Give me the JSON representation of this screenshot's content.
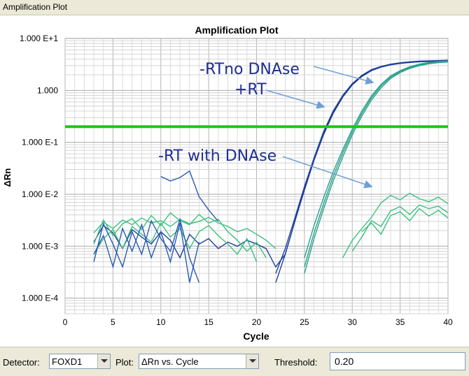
{
  "window": {
    "title": "Amplification Plot"
  },
  "chart_data": {
    "type": "line",
    "title": "Amplification Plot",
    "xlabel": "Cycle",
    "ylabel": "ΔRn",
    "xlim": [
      0,
      40
    ],
    "ylim": [
      5e-05,
      10
    ],
    "yscale": "log",
    "xticks": [
      0,
      5,
      10,
      15,
      20,
      25,
      30,
      35,
      40
    ],
    "xtick_labels": [
      "0",
      "5",
      "10",
      "15",
      "20",
      "25",
      "30",
      "35",
      "40"
    ],
    "yticks": [
      10,
      1,
      0.1,
      0.01,
      0.001,
      0.0001
    ],
    "ytick_labels": [
      "1.000 E+1",
      "1.000",
      "1.000 E-1",
      "1.000 E-2",
      "1.000 E-3",
      "1.000 E-4"
    ],
    "grid": true,
    "threshold": 0.2,
    "threshold_color": "#22c41a",
    "colors": {
      "plus_rt": "#1f3f9a",
      "minus_rt_no_dnase": "#2aa18a",
      "minus_rt_with_dnase": "#3cc080",
      "noise_dark": "#2a5ab0"
    },
    "annotations": [
      {
        "text": "-RTno DNAse",
        "target": "minus_rt_no_dnase"
      },
      {
        "text": "+RT",
        "target": "plus_rt"
      },
      {
        "text": "-RT with DNAse",
        "target": "minus_rt_with_dnase"
      }
    ],
    "series": [
      {
        "group": "plus_rt",
        "x": [
          3,
          4,
          5,
          6,
          7,
          8,
          9,
          10,
          11,
          12,
          13,
          14,
          15,
          16,
          17,
          18,
          19,
          20,
          21,
          22,
          23,
          24,
          25,
          26,
          27,
          28,
          29,
          30,
          31,
          32,
          33,
          34,
          35,
          36,
          37,
          38,
          39,
          40
        ],
        "y": [
          0.0012,
          0.0025,
          0.0018,
          0.0009,
          0.0021,
          0.0015,
          0.0011,
          0.0019,
          0.0013,
          0.0006,
          0.0017,
          0.0011,
          0.0014,
          0.0009,
          0.0012,
          0.001,
          0.0013,
          0.0011,
          0.0009,
          0.0004,
          0.0007,
          0.003,
          0.013,
          0.048,
          0.15,
          0.38,
          0.78,
          1.35,
          1.95,
          2.5,
          2.9,
          3.2,
          3.4,
          3.55,
          3.65,
          3.7,
          3.75,
          3.8
        ]
      },
      {
        "group": "plus_rt",
        "x": [
          22,
          23,
          24,
          25,
          26,
          27,
          28,
          29,
          30,
          31,
          32,
          33,
          34,
          35,
          36,
          37,
          38,
          39,
          40
        ],
        "y": [
          0.0003,
          0.0009,
          0.0035,
          0.014,
          0.05,
          0.16,
          0.4,
          0.8,
          1.35,
          1.9,
          2.45,
          2.85,
          3.15,
          3.35,
          3.5,
          3.6,
          3.65,
          3.7,
          3.72
        ]
      },
      {
        "group": "plus_rt",
        "x": [
          22,
          23,
          24,
          25,
          26,
          27,
          28,
          29,
          30,
          31,
          32,
          33,
          34,
          35,
          36,
          37,
          38,
          39,
          40
        ],
        "y": [
          0.0002,
          0.0007,
          0.003,
          0.012,
          0.045,
          0.14,
          0.36,
          0.74,
          1.28,
          1.85,
          2.4,
          2.8,
          3.1,
          3.3,
          3.45,
          3.55,
          3.6,
          3.65,
          3.68
        ]
      },
      {
        "group": "minus_rt_no_dnase",
        "x": [
          25,
          26,
          27,
          28,
          29,
          30,
          31,
          32,
          33,
          34,
          35,
          36,
          37,
          38,
          39,
          40
        ],
        "y": [
          0.0006,
          0.0025,
          0.0085,
          0.027,
          0.072,
          0.18,
          0.4,
          0.78,
          1.3,
          1.9,
          2.4,
          2.85,
          3.2,
          3.45,
          3.6,
          3.7
        ]
      },
      {
        "group": "minus_rt_no_dnase",
        "x": [
          25,
          26,
          27,
          28,
          29,
          30,
          31,
          32,
          33,
          34,
          35,
          36,
          37,
          38,
          39,
          40
        ],
        "y": [
          0.0004,
          0.0018,
          0.0065,
          0.022,
          0.062,
          0.16,
          0.36,
          0.72,
          1.22,
          1.8,
          2.3,
          2.75,
          3.1,
          3.35,
          3.5,
          3.6
        ]
      },
      {
        "group": "minus_rt_no_dnase",
        "x": [
          25,
          26,
          27,
          28,
          29,
          30,
          31,
          32,
          33,
          34,
          35,
          36,
          37,
          38,
          39,
          40
        ],
        "y": [
          0.0003,
          0.0014,
          0.0052,
          0.018,
          0.052,
          0.14,
          0.32,
          0.65,
          1.12,
          1.7,
          2.2,
          2.65,
          3.0,
          3.25,
          3.42,
          3.52
        ]
      },
      {
        "group": "minus_rt_with_dnase",
        "x": [
          3,
          4,
          5,
          6,
          7,
          8,
          9,
          10,
          11,
          12,
          13,
          14,
          15,
          16,
          17,
          18,
          19,
          20,
          21,
          22
        ],
        "y": [
          0.0018,
          0.0029,
          0.0022,
          0.0032,
          0.0026,
          0.0035,
          0.0028,
          0.0031,
          0.0024,
          0.0033,
          0.0027,
          0.003,
          0.0036,
          0.0028,
          0.0024,
          0.0019,
          0.0022,
          0.0017,
          0.0013,
          0.0009
        ]
      },
      {
        "group": "minus_rt_with_dnase",
        "x": [
          3,
          4,
          5,
          6,
          7,
          8,
          9,
          10,
          11,
          12,
          13,
          14,
          15,
          16,
          17,
          18,
          19,
          20,
          21
        ],
        "y": [
          0.0011,
          0.0032,
          0.0016,
          0.0027,
          0.0034,
          0.0021,
          0.0039,
          0.0025,
          0.0044,
          0.0031,
          0.0026,
          0.0041,
          0.0028,
          0.0033,
          0.0019,
          0.0013,
          0.0008,
          0.0012,
          0.0006
        ]
      },
      {
        "group": "minus_rt_with_dnase",
        "x": [
          3,
          4,
          5,
          6,
          7,
          8,
          9,
          10,
          11,
          12,
          13,
          14,
          15,
          16,
          17,
          18,
          19,
          20
        ],
        "y": [
          0.0007,
          0.0014,
          0.0021,
          0.0009,
          0.0024,
          0.0017,
          0.0012,
          0.0028,
          0.0015,
          0.0022,
          0.0009,
          0.0019,
          0.0025,
          0.0016,
          0.0011,
          0.0007,
          0.0014,
          0.0005
        ]
      },
      {
        "group": "minus_rt_with_dnase",
        "x": [
          29,
          30,
          31,
          32,
          33,
          34,
          35,
          36,
          37,
          38,
          39,
          40
        ],
        "y": [
          0.0006,
          0.0013,
          0.0022,
          0.0036,
          0.0068,
          0.0095,
          0.0078,
          0.0105,
          0.0082,
          0.0072,
          0.0088,
          0.0066
        ]
      },
      {
        "group": "minus_rt_with_dnase",
        "x": [
          30,
          31,
          32,
          33,
          34,
          35,
          36,
          37,
          38,
          39,
          40
        ],
        "y": [
          0.0008,
          0.0015,
          0.0031,
          0.0024,
          0.0048,
          0.0058,
          0.0041,
          0.0062,
          0.0053,
          0.0059,
          0.0044
        ]
      },
      {
        "group": "minus_rt_with_dnase",
        "x": [
          31,
          32,
          33,
          34,
          35,
          36,
          37,
          38,
          39,
          40
        ],
        "y": [
          0.0019,
          0.0028,
          0.0017,
          0.0039,
          0.0046,
          0.0031,
          0.0053,
          0.0038,
          0.0049,
          0.0035
        ]
      },
      {
        "group": "noise_dark",
        "x": [
          3,
          4,
          5,
          6,
          7,
          8,
          9,
          10,
          11,
          12,
          13,
          14
        ],
        "y": [
          0.0007,
          0.0016,
          0.0004,
          0.0022,
          0.0008,
          0.0026,
          0.0006,
          0.0019,
          0.0005,
          0.0028,
          0.0002,
          0.0012
        ]
      },
      {
        "group": "noise_dark",
        "x": [
          3,
          4,
          5,
          6,
          7,
          8,
          9,
          10,
          11,
          12,
          13,
          14
        ],
        "y": [
          0.0005,
          0.0027,
          0.0011,
          0.0004,
          0.0019,
          0.0007,
          0.0031,
          0.0014,
          0.0008,
          0.0033,
          0.0006,
          0.0002
        ]
      },
      {
        "group": "noise_dark",
        "x": [
          10,
          11,
          12,
          13,
          14,
          15,
          16
        ],
        "y": [
          0.022,
          0.018,
          0.021,
          0.028,
          0.009,
          0.005,
          0.003
        ]
      }
    ]
  },
  "controls": {
    "detector_label": "Detector:",
    "detector_value": "FOXD1",
    "plot_label": "Plot:",
    "plot_value": "ΔRn vs. Cycle",
    "threshold_label": "Threshold:",
    "threshold_value": "0.20"
  }
}
